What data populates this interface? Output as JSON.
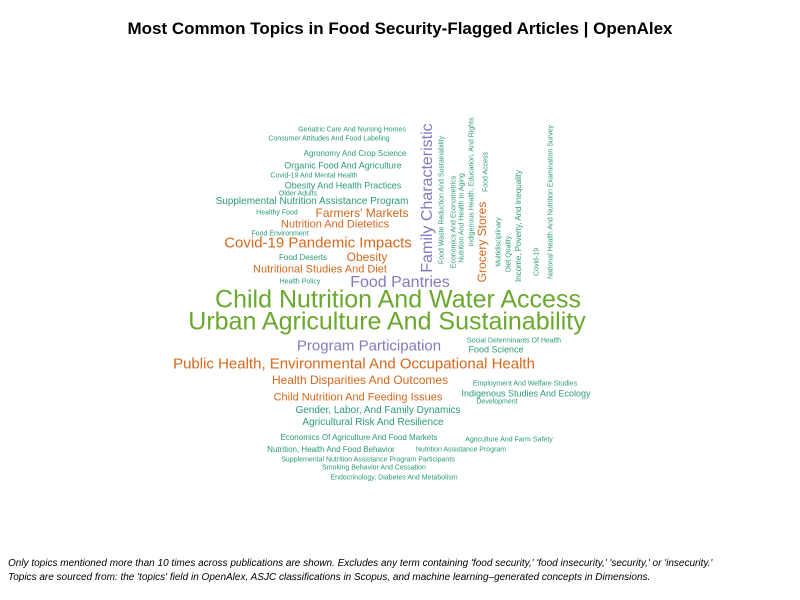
{
  "title": "Most Common Topics in Food Security-Flagged Articles | OpenAlex",
  "colors": {
    "green": "#6aa82e",
    "purple": "#8878bd",
    "orange": "#d5681c",
    "teal": "#2b9a7a"
  },
  "chart_data": {
    "type": "wordcloud",
    "title": "Most Common Topics in Food Security-Flagged Articles | OpenAlex",
    "words": [
      {
        "text": "Child Nutrition And Water Access",
        "weight": 100,
        "color": "green"
      },
      {
        "text": "Urban Agriculture And Sustainability",
        "weight": 98,
        "color": "green"
      },
      {
        "text": "Family Characteristic",
        "weight": 62,
        "color": "purple"
      },
      {
        "text": "Food Pantries",
        "weight": 58,
        "color": "purple"
      },
      {
        "text": "Program Participation",
        "weight": 56,
        "color": "purple"
      },
      {
        "text": "Public Health, Environmental And Occupational Health",
        "weight": 55,
        "color": "orange"
      },
      {
        "text": "Covid-19 Pandemic Impacts",
        "weight": 53,
        "color": "orange"
      },
      {
        "text": "Grocery Stores",
        "weight": 44,
        "color": "orange"
      },
      {
        "text": "Health Disparities And Outcomes",
        "weight": 46,
        "color": "orange"
      },
      {
        "text": "Obesity",
        "weight": 44,
        "color": "orange"
      },
      {
        "text": "Farmers' Markets",
        "weight": 42,
        "color": "orange"
      },
      {
        "text": "Child Nutrition And Feeding Issues",
        "weight": 41,
        "color": "orange"
      },
      {
        "text": "Nutritional Studies And Diet",
        "weight": 40,
        "color": "orange"
      },
      {
        "text": "Nutrition And Dietetics",
        "weight": 39,
        "color": "orange"
      },
      {
        "text": "Gender, Labor, And Family Dynamics",
        "weight": 38,
        "color": "teal"
      },
      {
        "text": "Agricultural Risk And Resilience",
        "weight": 37,
        "color": "teal"
      },
      {
        "text": "Supplemental Nutrition Assistance Program",
        "weight": 36,
        "color": "teal"
      },
      {
        "text": "Income, Poverty, And Inequality",
        "weight": 32,
        "color": "teal"
      },
      {
        "text": "Indigenous Studies And Ecology",
        "weight": 33,
        "color": "teal"
      },
      {
        "text": "Economics Of Agriculture And Food Markets",
        "weight": 33,
        "color": "teal"
      },
      {
        "text": "Nutrition, Health And Food Behavior",
        "weight": 32,
        "color": "teal"
      },
      {
        "text": "Obesity And Health Practices",
        "weight": 32,
        "color": "teal"
      },
      {
        "text": "Organic Food And Agriculture",
        "weight": 32,
        "color": "teal"
      },
      {
        "text": "Food Science",
        "weight": 31,
        "color": "teal"
      },
      {
        "text": "Agronomy And Crop Science",
        "weight": 30,
        "color": "teal"
      },
      {
        "text": "Food Waste Reduction And Sustainability",
        "weight": 30,
        "color": "teal"
      },
      {
        "text": "Nutrition And Health In Aging",
        "weight": 29,
        "color": "teal"
      },
      {
        "text": "Food Deserts",
        "weight": 29,
        "color": "teal"
      },
      {
        "text": "Geriatric Care And Nursing Homes",
        "weight": 27,
        "color": "teal"
      },
      {
        "text": "Consumer Attitudes And Food Labeling",
        "weight": 27,
        "color": "teal"
      },
      {
        "text": "Covid-19 And Mental Health",
        "weight": 27,
        "color": "teal"
      },
      {
        "text": "Health Policy",
        "weight": 26,
        "color": "teal"
      },
      {
        "text": "Healthy Food",
        "weight": 26,
        "color": "teal"
      },
      {
        "text": "Economics And Econometrics",
        "weight": 26,
        "color": "teal"
      },
      {
        "text": "Indigenous Health, Education, And Rights",
        "weight": 26,
        "color": "teal"
      },
      {
        "text": "Food Access",
        "weight": 26,
        "color": "teal"
      },
      {
        "text": "Diet Quality",
        "weight": 26,
        "color": "teal"
      },
      {
        "text": "Covid-19",
        "weight": 26,
        "color": "teal"
      },
      {
        "text": "Social Determinants Of Health",
        "weight": 25,
        "color": "teal"
      },
      {
        "text": "Employment And Welfare Studies",
        "weight": 25,
        "color": "teal"
      },
      {
        "text": "Agriculture And Farm Safety",
        "weight": 25,
        "color": "teal"
      },
      {
        "text": "Nutrition Assistance Program",
        "weight": 25,
        "color": "teal"
      },
      {
        "text": "Supplemental Nutrition Assistance Program Participants",
        "weight": 25,
        "color": "teal"
      },
      {
        "text": "Smoking Behavior And Cessation",
        "weight": 25,
        "color": "teal"
      },
      {
        "text": "Endocrinology, Diabetes And Metabolism",
        "weight": 25,
        "color": "teal"
      },
      {
        "text": "Older Adults",
        "weight": 24,
        "color": "teal"
      },
      {
        "text": "Food Environment",
        "weight": 24,
        "color": "teal"
      },
      {
        "text": "Multidisciplinary",
        "weight": 24,
        "color": "teal"
      },
      {
        "text": "National Health And Nutrition Examination Survey",
        "weight": 24,
        "color": "teal"
      },
      {
        "text": "Development",
        "weight": 24,
        "color": "teal"
      }
    ]
  },
  "footnotes": {
    "line1": "Only topics mentioned more than 10 times across publications are shown. Excludes any term containing 'food security,' 'food insecurity,' 'security,' or 'insecurity.'",
    "line2": "Topics are sourced from: the 'topics' field in OpenAlex, ASJC classifications in Scopus, and machine learning–generated concepts in Dimensions."
  }
}
